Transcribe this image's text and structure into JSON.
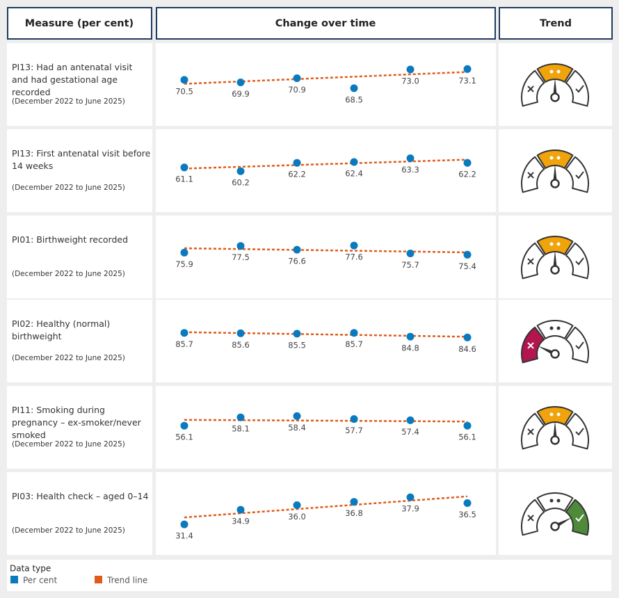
{
  "header": {
    "measure": "Measure (per cent)",
    "change": "Change over time",
    "trend": "Trend"
  },
  "colors": {
    "dot": "#0a7abf",
    "trend_line": "#e05a1a",
    "left": "#b3164f",
    "middle": "#f0a30a",
    "right": "#4f8a3a"
  },
  "rows": [
    {
      "measure": "PI13: Had an antenatal visit and had gestational age recorded",
      "period": "(December 2022 to June 2025)",
      "values": [
        70.5,
        69.9,
        70.9,
        68.5,
        73.0,
        73.1
      ],
      "value_labels": [
        "70.5",
        "69.9",
        "70.9",
        "68.5",
        "73.0",
        "73.1"
      ],
      "gauge": "middle"
    },
    {
      "measure": "PI13: First antenatal visit before 14 weeks",
      "period": "(December 2022 to June 2025)",
      "values": [
        61.1,
        60.2,
        62.2,
        62.4,
        63.3,
        62.2
      ],
      "value_labels": [
        "61.1",
        "60.2",
        "62.2",
        "62.4",
        "63.3",
        "62.2"
      ],
      "gauge": "middle"
    },
    {
      "measure": "PI01: Birthweight recorded",
      "period": "(December 2022 to June 2025)",
      "values": [
        75.9,
        77.5,
        76.6,
        77.6,
        75.7,
        75.4
      ],
      "value_labels": [
        "75.9",
        "77.5",
        "76.6",
        "77.6",
        "75.7",
        "75.4"
      ],
      "gauge": "middle"
    },
    {
      "measure": "PI02: Healthy (normal) birthweight",
      "period": "(December 2022 to June 2025)",
      "values": [
        85.7,
        85.6,
        85.5,
        85.7,
        84.8,
        84.6
      ],
      "value_labels": [
        "85.7",
        "85.6",
        "85.5",
        "85.7",
        "84.8",
        "84.6"
      ],
      "gauge": "left"
    },
    {
      "measure": "PI11: Smoking during pregnancy – ex-smoker/never smoked",
      "period": "(December 2022 to June 2025)",
      "values": [
        56.1,
        58.1,
        58.4,
        57.7,
        57.4,
        56.1
      ],
      "value_labels": [
        "56.1",
        "58.1",
        "58.4",
        "57.7",
        "57.4",
        "56.1"
      ],
      "gauge": "middle"
    },
    {
      "measure": "PI03: Health check – aged 0–14",
      "period": "(December 2022 to June 2025)",
      "values": [
        31.4,
        34.9,
        36.0,
        36.8,
        37.9,
        36.5
      ],
      "value_labels": [
        "31.4",
        "34.9",
        "36.0",
        "36.8",
        "37.9",
        "36.5"
      ],
      "gauge": "right"
    }
  ],
  "legend": {
    "title": "Data type",
    "dot": "Per cent",
    "line": "Trend line"
  }
}
